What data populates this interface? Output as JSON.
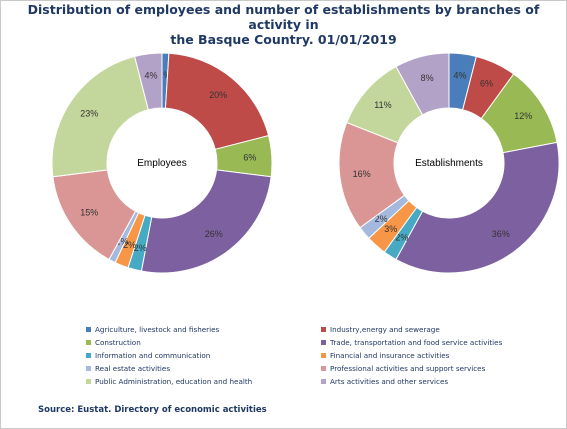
{
  "title_line1": "Distribution of employees and number of establishments by branches of activity in",
  "title_line2": "the Basque Country. 01/01/2019",
  "source": "Source: Eustat. Directory of economic activities",
  "chart_data": [
    {
      "type": "pie",
      "center_label": "Employees",
      "categories": [
        "Agriculture, livestock and fisheries",
        "Industry,energy and sewerage",
        "Construction",
        "Trade, transportation and food service activities",
        "Information and communication",
        "Financial and insurance activities",
        "Real estate activities",
        "Professional activities and support services",
        "Public Administration, education and health",
        "Arts activities and other services"
      ],
      "values": [
        1,
        20,
        6,
        26,
        2,
        2,
        1,
        15,
        23,
        4
      ],
      "labels": [
        "1%",
        "20%",
        "6%",
        "26%",
        "2%",
        "2%",
        "1%",
        "15%",
        "23%",
        "4%"
      ]
    },
    {
      "type": "pie",
      "center_label": "Establishments",
      "categories": [
        "Agriculture, livestock and fisheries",
        "Industry,energy and sewerage",
        "Construction",
        "Trade, transportation and food service activities",
        "Information and communication",
        "Financial and insurance activities",
        "Real estate activities",
        "Professional activities and support services",
        "Public Administration, education and health",
        "Arts activities and other services"
      ],
      "values": [
        4,
        6,
        12,
        36,
        2,
        3,
        2,
        16,
        11,
        8
      ],
      "labels": [
        "4%",
        "6%",
        "12%",
        "36%",
        "2%",
        "3%",
        "2%",
        "16%",
        "11%",
        "8%"
      ]
    }
  ],
  "legend": [
    {
      "label": "Agriculture, livestock and fisheries",
      "color": "#4a7ebb"
    },
    {
      "label": "Industry,energy and sewerage",
      "color": "#be4b48"
    },
    {
      "label": "Construction",
      "color": "#98b954"
    },
    {
      "label": "Trade, transportation and food service activities",
      "color": "#7d60a0"
    },
    {
      "label": "Information and communication",
      "color": "#46aac5"
    },
    {
      "label": "Financial and insurance activities",
      "color": "#f79646"
    },
    {
      "label": "Real estate activities",
      "color": "#a5b9de"
    },
    {
      "label": "Professional activities and support services",
      "color": "#d99694"
    },
    {
      "label": "Public Administration, education and health",
      "color": "#c3d69b"
    },
    {
      "label": "Arts activities and other services",
      "color": "#b3a2c7"
    }
  ]
}
